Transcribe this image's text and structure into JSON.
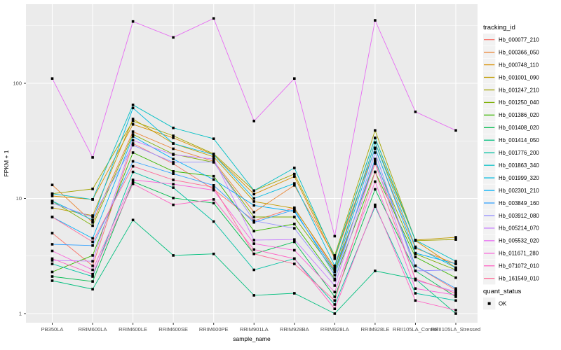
{
  "chart_data": {
    "type": "line",
    "title": "",
    "xlabel": "sample_name",
    "ylabel": "FPKM + 1",
    "y_scale": "log10",
    "y_ticks": [
      "1",
      "10",
      "100"
    ],
    "y_tick_values": [
      1,
      10,
      100
    ],
    "ylim": [
      0.92,
      500
    ],
    "grid": "on",
    "legend_position": "right",
    "categories": [
      "PB350LA",
      "RRIM600LA",
      "RRIM600LE",
      "RRIM600SE",
      "RRIM600PE",
      "RRIM901LA",
      "RRIM928BA",
      "RRIM928LA",
      "RRIM928LE",
      "RRII105LA_Control",
      "RRII105LA_Stressed"
    ],
    "series": [
      {
        "name": "Hb_000077_210",
        "color": "#F8766D",
        "values": [
          5.0,
          2.6,
          30,
          20,
          12,
          6.4,
          8.3,
          2.4,
          20,
          2.6,
          1.6
        ]
      },
      {
        "name": "Hb_000366_050",
        "color": "#EA8331",
        "values": [
          13.1,
          6.2,
          38,
          27,
          21,
          7.6,
          13,
          3.1,
          27,
          3.7,
          2.7
        ]
      },
      {
        "name": "Hb_000748_110",
        "color": "#D89000",
        "values": [
          10.5,
          9.8,
          44,
          33.6,
          24,
          10.9,
          15.5,
          3.0,
          33.5,
          4.3,
          2.5
        ]
      },
      {
        "name": "Hb_001001_090",
        "color": "#C09B00",
        "values": [
          8.3,
          7.1,
          49,
          30,
          23,
          9.4,
          8.2,
          2.5,
          30.5,
          4.35,
          4.6
        ]
      },
      {
        "name": "Hb_001247_210",
        "color": "#A3A500",
        "values": [
          11.0,
          12.1,
          47,
          35,
          24.4,
          11.7,
          16.3,
          3.2,
          39,
          4.3,
          4.4
        ]
      },
      {
        "name": "Hb_001250_040",
        "color": "#7CAE00",
        "values": [
          9.5,
          5.8,
          36,
          24.3,
          20.6,
          6.9,
          6.9,
          2.3,
          21,
          3.3,
          2.4
        ]
      },
      {
        "name": "Hb_001386_020",
        "color": "#39B600",
        "values": [
          2.3,
          3.2,
          25,
          17.2,
          15.6,
          5.2,
          6.0,
          2.0,
          17,
          3.1,
          2.05
        ]
      },
      {
        "name": "Hb_001408_020",
        "color": "#00BB4E",
        "values": [
          2.1,
          1.9,
          14,
          10.1,
          9.1,
          3.3,
          4.2,
          1.4,
          12,
          2.35,
          1.4
        ]
      },
      {
        "name": "Hb_001414_050",
        "color": "#00BF7D",
        "values": [
          1.93,
          1.63,
          6.5,
          3.2,
          3.3,
          1.44,
          1.5,
          1.0,
          2.35,
          2.0,
          1.0
        ]
      },
      {
        "name": "Hb_001776_200",
        "color": "#00C1A3",
        "values": [
          2.7,
          2.1,
          17,
          12.4,
          6.3,
          2.4,
          3.0,
          1.2,
          8.5,
          1.5,
          1.3
        ]
      },
      {
        "name": "Hb_001863_340",
        "color": "#00BFC4",
        "values": [
          11.0,
          9.8,
          65,
          41,
          33,
          11.7,
          18.4,
          3.1,
          33.5,
          4.35,
          2.85
        ]
      },
      {
        "name": "Hb_001999_320",
        "color": "#00BAE0",
        "values": [
          9.5,
          6.5,
          61,
          30,
          24,
          10,
          13.5,
          2.6,
          30.5,
          3.8,
          2.5
        ]
      },
      {
        "name": "Hb_002301_210",
        "color": "#00B0F6",
        "values": [
          6.9,
          4.5,
          34.5,
          22,
          14.6,
          8.7,
          7.7,
          2.35,
          27.5,
          3.35,
          2.7
        ]
      },
      {
        "name": "Hb_003849_160",
        "color": "#35A2FF",
        "values": [
          4.0,
          3.9,
          21,
          16.4,
          13,
          6.2,
          8.0,
          2.16,
          22,
          2.6,
          1.65
        ]
      },
      {
        "name": "Hb_003912_080",
        "color": "#9590FF",
        "values": [
          9.1,
          6.9,
          29,
          20.6,
          20.8,
          6.4,
          5.5,
          1.95,
          25,
          2.35,
          2.4
        ]
      },
      {
        "name": "Hb_005214_070",
        "color": "#C77CFF",
        "values": [
          2.9,
          2.85,
          32,
          24,
          22,
          4.35,
          4.4,
          1.75,
          21,
          1.95,
          1.55
        ]
      },
      {
        "name": "Hb_005532_020",
        "color": "#E76BF3",
        "values": [
          110,
          22.7,
          344,
          250,
          366,
          47,
          110,
          4.7,
          352,
          56.6,
          39
        ]
      },
      {
        "name": "Hb_011671_280",
        "color": "#FA62DB",
        "values": [
          3.5,
          2.4,
          14.5,
          13.3,
          11.8,
          4.05,
          3.55,
          1.54,
          14,
          1.65,
          1.45
        ]
      },
      {
        "name": "Hb_071072_010",
        "color": "#FF61C3",
        "values": [
          3.0,
          2.2,
          13.4,
          8.8,
          9.8,
          3.6,
          3.0,
          1.1,
          8.8,
          1.3,
          1.07
        ]
      },
      {
        "name": "Hb_161549_010",
        "color": "#FF6A98",
        "values": [
          6.9,
          4.2,
          19,
          14.5,
          12.5,
          3.3,
          2.7,
          1.3,
          17,
          2.0,
          1.5
        ]
      }
    ],
    "points": {
      "shape": "square",
      "color": "#000000"
    }
  },
  "legend": {
    "color_title": "tracking_id",
    "shape_title": "quant_status",
    "shape_items": [
      {
        "label": "OK",
        "marker": "black-square"
      }
    ]
  },
  "axes": {
    "x_title": "sample_name",
    "y_title": "FPKM + 1"
  },
  "colors": {
    "panel_bg": "#EBEBEB",
    "grid_major": "#FFFFFF",
    "grid_minor": "#F7F7F7",
    "axis_text": "#4D4D4D",
    "tick_mark": "#333333",
    "legend_key_bg": "#F2F2F2",
    "text": "#000000"
  }
}
